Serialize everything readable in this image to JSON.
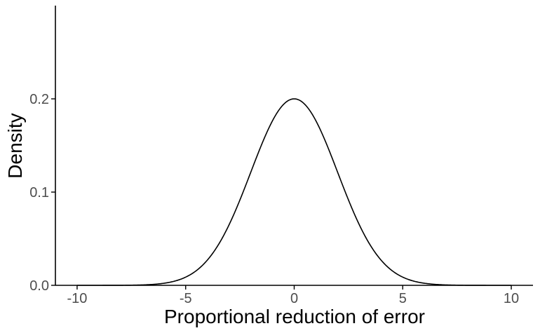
{
  "chart_data": {
    "type": "line",
    "title": "",
    "xlabel": "Proportional reduction of error",
    "ylabel": "Density",
    "xlim": [
      -11,
      11
    ],
    "ylim": [
      0,
      0.3
    ],
    "x_ticks": [
      -10,
      -5,
      0,
      5,
      10
    ],
    "x_tick_labels": [
      "-10",
      "-5",
      "0",
      "5",
      "10"
    ],
    "y_ticks": [
      0.0,
      0.1,
      0.2
    ],
    "y_tick_labels": [
      "0.0",
      "0.1",
      "0.2"
    ],
    "grid": false,
    "legend": "none",
    "series": [
      {
        "color": "#000000",
        "x": [
          -10,
          -9,
          -8,
          -7,
          -6,
          -5,
          -4.5,
          -4,
          -3.5,
          -3,
          -2.5,
          -2,
          -1.5,
          -1,
          -0.5,
          0,
          0.5,
          1,
          1.5,
          2,
          2.5,
          3,
          3.5,
          4,
          4.5,
          5,
          6,
          7,
          8,
          9,
          10
        ],
        "y": [
          0.0,
          0.0002,
          0.0007,
          0.0022,
          0.0065,
          0.0162,
          0.0238,
          0.0325,
          0.0433,
          0.0549,
          0.0705,
          0.0968,
          0.1264,
          0.1545,
          0.1882,
          0.2,
          0.1882,
          0.1545,
          0.1264,
          0.0968,
          0.0705,
          0.0549,
          0.0433,
          0.0325,
          0.0238,
          0.0162,
          0.0065,
          0.0022,
          0.0007,
          0.0002,
          0.0
        ]
      }
    ]
  }
}
